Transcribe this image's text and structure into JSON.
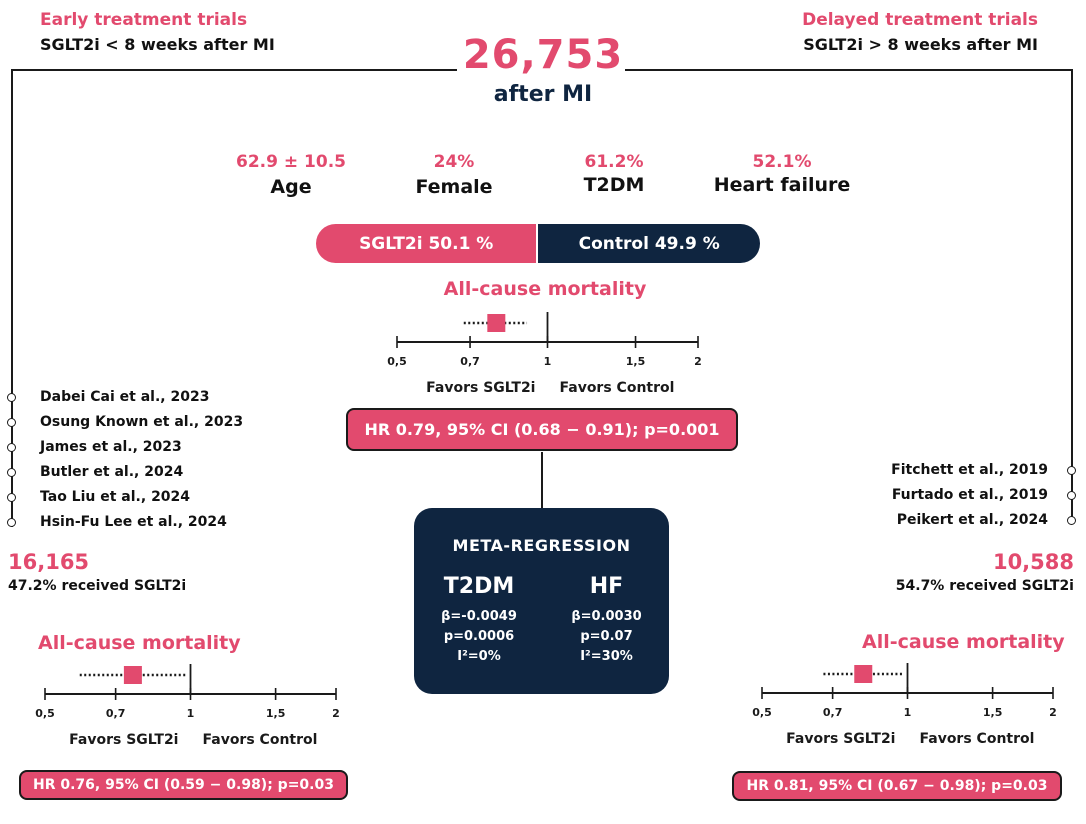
{
  "colors": {
    "pink": "#e24a6e",
    "navy": "#0f2540"
  },
  "early": {
    "title": "Early treatment trials",
    "subtitle": "SGLT2i < 8 weeks after MI",
    "studies": [
      "Dabei Cai et al., 2023",
      "Osung Known et al., 2023",
      "James et al., 2023",
      "Butler et al., 2024",
      "Tao Liu et al., 2024",
      "Hsin-Fu Lee et al., 2024"
    ],
    "total": "16,165",
    "received": "47.2% received SGLT2i"
  },
  "delayed": {
    "title": "Delayed treatment trials",
    "subtitle": "SGLT2i > 8 weeks after MI",
    "studies": [
      "Fitchett et al., 2019",
      "Furtado et al., 2019",
      "Peikert et al., 2024"
    ],
    "total": "10,588",
    "received": "54.7% received SGLT2i"
  },
  "center": {
    "total": "26,753",
    "total_label": "after MI",
    "stats": [
      {
        "value": "62.9 ± 10.5",
        "label": "Age"
      },
      {
        "value": "24%",
        "label": "Female"
      },
      {
        "value": "61.2%",
        "label": "T2DM"
      },
      {
        "value": "52.1%",
        "label": "Heart failure"
      }
    ],
    "sglt2i_bar": "SGLT2i 50.1 %",
    "sglt2i_pct": 50.1,
    "control_bar": "Control 49.9 %",
    "control_pct": 49.9
  },
  "chart_data": [
    {
      "type": "forest",
      "title": "All-cause mortality",
      "hr": 0.79,
      "ci": [
        0.68,
        0.91
      ],
      "ticks": [
        "0,5",
        "0,7",
        "1",
        "1,5",
        "2"
      ],
      "tick_values": [
        0.5,
        0.7,
        1,
        1.5,
        2
      ],
      "left_label": "Favors SGLT2i",
      "right_label": "Favors Control",
      "result": "HR 0.79, 95% CI (0.68 − 0.91); p=0.001"
    },
    {
      "type": "forest",
      "title": "All-cause mortality",
      "hr": 0.76,
      "ci": [
        0.59,
        0.98
      ],
      "ticks": [
        "0,5",
        "0,7",
        "1",
        "1,5",
        "2"
      ],
      "tick_values": [
        0.5,
        0.7,
        1,
        1.5,
        2
      ],
      "left_label": "Favors SGLT2i",
      "right_label": "Favors Control",
      "result": "HR 0.76, 95% CI (0.59 − 0.98); p=0.03"
    },
    {
      "type": "forest",
      "title": "All-cause mortality",
      "hr": 0.81,
      "ci": [
        0.67,
        0.98
      ],
      "ticks": [
        "0,5",
        "0,7",
        "1",
        "1,5",
        "2"
      ],
      "tick_values": [
        0.5,
        0.7,
        1,
        1.5,
        2
      ],
      "left_label": "Favors SGLT2i",
      "right_label": "Favors Control",
      "result": "HR 0.81, 95% CI (0.67 − 0.98); p=0.03"
    }
  ],
  "meta": {
    "title": "META-REGRESSION",
    "cols": [
      {
        "name": "T2DM",
        "beta": "β=-0.0049",
        "p": "p=0.0006",
        "i2": "I²=0%"
      },
      {
        "name": "HF",
        "beta": "β=0.0030",
        "p": "p=0.07",
        "i2": "I²=30%"
      }
    ]
  }
}
